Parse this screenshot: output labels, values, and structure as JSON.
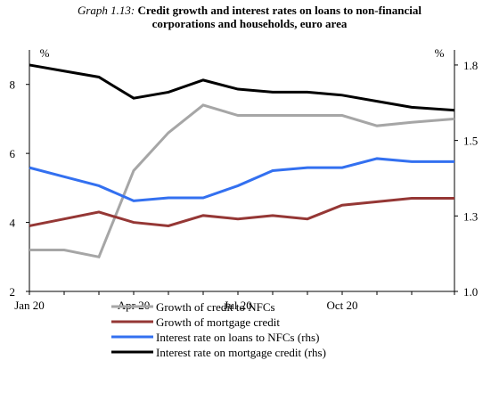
{
  "chart_data": {
    "type": "line",
    "title_prefix": "Graph 1.13:",
    "title": "Credit growth and interest rates on loans to non-financial corporations and households, euro area",
    "y_unit": "%",
    "y2_unit": "%",
    "categories": [
      "Jan 20",
      null,
      null,
      "Apr 20",
      null,
      null,
      "Jul 20",
      null,
      null,
      "Oct 20",
      null,
      null,
      null
    ],
    "ylim": [
      2,
      9
    ],
    "yticks": [
      2,
      4,
      6,
      8
    ],
    "y2lim": [
      1.0,
      1.8
    ],
    "y2ticks": [
      {
        "value": 1.0,
        "label": "1.0"
      },
      {
        "value": 1.25,
        "label": "1.3"
      },
      {
        "value": 1.5,
        "label": "1.5"
      },
      {
        "value": 1.75,
        "label": "1.8"
      }
    ],
    "series": [
      {
        "name": "Growth of credit to NFCs",
        "color": "#a6a6a6",
        "values": [
          3.2,
          3.2,
          3.0,
          5.5,
          6.6,
          7.4,
          7.1,
          7.1,
          7.1,
          7.1,
          6.8,
          6.9,
          7.0
        ]
      },
      {
        "name": "Growth of mortgage credit",
        "color": "#953735",
        "values": [
          3.9,
          4.1,
          4.3,
          4.0,
          3.9,
          4.2,
          4.1,
          4.2,
          4.1,
          4.5,
          4.6,
          4.7,
          4.7
        ]
      },
      {
        "name": "Interest rate on loans to NFCs (rhs)",
        "color": "#3370f0",
        "axis": "y2",
        "values": [
          1.41,
          1.38,
          1.35,
          1.3,
          1.31,
          1.31,
          1.35,
          1.4,
          1.41,
          1.41,
          1.44,
          1.43,
          1.43
        ]
      },
      {
        "name": "Interest rate on mortgage credit (rhs)",
        "color": "#000000",
        "axis": "y2",
        "values": [
          1.75,
          1.73,
          1.71,
          1.64,
          1.66,
          1.7,
          1.67,
          1.66,
          1.66,
          1.65,
          1.63,
          1.61,
          1.6
        ]
      }
    ]
  }
}
